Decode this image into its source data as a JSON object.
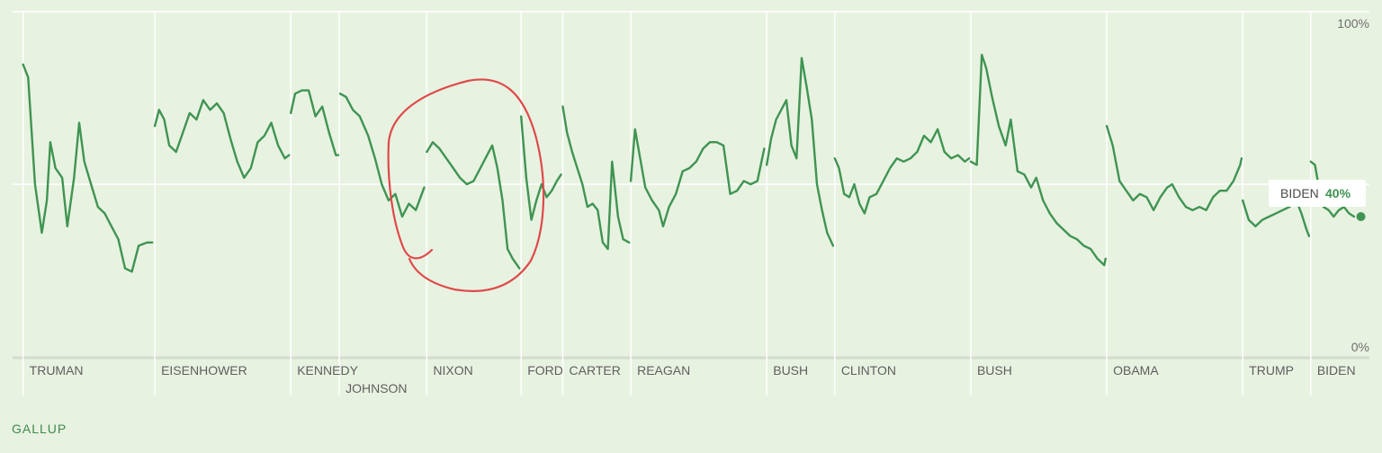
{
  "chart_data": {
    "type": "line",
    "source": "GALLUP",
    "ylim": [
      0,
      100
    ],
    "y_ticks": [
      "100%",
      "0%"
    ],
    "x_domain": [
      1945,
      2024.5
    ],
    "colors": {
      "line": "#3f9452",
      "grid": "#ffffff",
      "annotation": "#de4a4a",
      "background": "#e8f2e1"
    },
    "presidents": [
      {
        "name": "TRUMAN",
        "start": 1945.3,
        "row": 0
      },
      {
        "name": "EISENHOWER",
        "start": 1953.05,
        "row": 0
      },
      {
        "name": "KENNEDY",
        "start": 1961.05,
        "row": 0
      },
      {
        "name": "JOHNSON",
        "start": 1963.9,
        "row": 1
      },
      {
        "name": "NIXON",
        "start": 1969.05,
        "row": 0
      },
      {
        "name": "FORD",
        "start": 1974.6,
        "row": 0
      },
      {
        "name": "CARTER",
        "start": 1977.05,
        "row": 0
      },
      {
        "name": "REAGAN",
        "start": 1981.05,
        "row": 0
      },
      {
        "name": "BUSH",
        "start": 1989.05,
        "row": 0
      },
      {
        "name": "CLINTON",
        "start": 1993.05,
        "row": 0
      },
      {
        "name": "BUSH",
        "start": 2001.05,
        "row": 0
      },
      {
        "name": "OBAMA",
        "start": 2009.05,
        "row": 0
      },
      {
        "name": "TRUMP",
        "start": 2017.05,
        "row": 0
      },
      {
        "name": "BIDEN",
        "start": 2021.05,
        "row": 0
      }
    ],
    "series": [
      {
        "president": "TRUMAN",
        "points": [
          [
            1945.3,
            87
          ],
          [
            1945.6,
            83
          ],
          [
            1946.0,
            50
          ],
          [
            1946.4,
            35
          ],
          [
            1946.7,
            45
          ],
          [
            1946.9,
            63
          ],
          [
            1947.2,
            55
          ],
          [
            1947.6,
            52
          ],
          [
            1947.9,
            37
          ],
          [
            1948.3,
            52
          ],
          [
            1948.6,
            69
          ],
          [
            1948.9,
            57
          ],
          [
            1949.3,
            50
          ],
          [
            1949.7,
            43
          ],
          [
            1950.1,
            41
          ],
          [
            1950.5,
            37
          ],
          [
            1950.9,
            33
          ],
          [
            1951.3,
            24
          ],
          [
            1951.7,
            23
          ],
          [
            1952.1,
            31
          ],
          [
            1952.6,
            32
          ],
          [
            1952.9,
            32
          ]
        ]
      },
      {
        "president": "EISENHOWER",
        "points": [
          [
            1953.05,
            68
          ],
          [
            1953.3,
            73
          ],
          [
            1953.6,
            70
          ],
          [
            1953.9,
            62
          ],
          [
            1954.3,
            60
          ],
          [
            1954.7,
            66
          ],
          [
            1955.1,
            72
          ],
          [
            1955.5,
            70
          ],
          [
            1955.9,
            76
          ],
          [
            1956.3,
            73
          ],
          [
            1956.7,
            75
          ],
          [
            1957.1,
            72
          ],
          [
            1957.5,
            64
          ],
          [
            1957.9,
            57
          ],
          [
            1958.3,
            52
          ],
          [
            1958.7,
            55
          ],
          [
            1959.1,
            63
          ],
          [
            1959.5,
            65
          ],
          [
            1959.9,
            69
          ],
          [
            1960.3,
            62
          ],
          [
            1960.7,
            58
          ],
          [
            1960.95,
            59
          ]
        ]
      },
      {
        "president": "KENNEDY",
        "points": [
          [
            1961.05,
            72
          ],
          [
            1961.3,
            78
          ],
          [
            1961.7,
            79
          ],
          [
            1962.1,
            79
          ],
          [
            1962.5,
            71
          ],
          [
            1962.9,
            74
          ],
          [
            1963.3,
            66
          ],
          [
            1963.7,
            59
          ],
          [
            1963.85,
            59
          ]
        ]
      },
      {
        "president": "JOHNSON",
        "points": [
          [
            1963.95,
            78
          ],
          [
            1964.3,
            77
          ],
          [
            1964.7,
            73
          ],
          [
            1965.1,
            71
          ],
          [
            1965.6,
            65
          ],
          [
            1966.0,
            58
          ],
          [
            1966.4,
            50
          ],
          [
            1966.8,
            45
          ],
          [
            1967.2,
            47
          ],
          [
            1967.6,
            40
          ],
          [
            1968.0,
            44
          ],
          [
            1968.4,
            42
          ],
          [
            1968.9,
            49
          ]
        ]
      },
      {
        "president": "NIXON",
        "points": [
          [
            1969.05,
            60
          ],
          [
            1969.4,
            63
          ],
          [
            1969.8,
            61
          ],
          [
            1970.2,
            58
          ],
          [
            1970.6,
            55
          ],
          [
            1971.0,
            52
          ],
          [
            1971.4,
            50
          ],
          [
            1971.8,
            51
          ],
          [
            1972.2,
            55
          ],
          [
            1972.6,
            59
          ],
          [
            1972.9,
            62
          ],
          [
            1973.2,
            55
          ],
          [
            1973.5,
            45
          ],
          [
            1973.8,
            30
          ],
          [
            1974.1,
            27
          ],
          [
            1974.5,
            24
          ]
        ]
      },
      {
        "president": "FORD",
        "points": [
          [
            1974.6,
            71
          ],
          [
            1974.9,
            52
          ],
          [
            1975.2,
            39
          ],
          [
            1975.5,
            45
          ],
          [
            1975.8,
            50
          ],
          [
            1976.1,
            46
          ],
          [
            1976.4,
            48
          ],
          [
            1976.7,
            51
          ],
          [
            1976.95,
            53
          ]
        ]
      },
      {
        "president": "CARTER",
        "points": [
          [
            1977.05,
            74
          ],
          [
            1977.3,
            66
          ],
          [
            1977.6,
            60
          ],
          [
            1977.9,
            55
          ],
          [
            1978.2,
            50
          ],
          [
            1978.5,
            43
          ],
          [
            1978.8,
            44
          ],
          [
            1979.1,
            42
          ],
          [
            1979.4,
            32
          ],
          [
            1979.7,
            30
          ],
          [
            1979.95,
            57
          ],
          [
            1980.3,
            40
          ],
          [
            1980.6,
            33
          ],
          [
            1980.95,
            32
          ]
        ]
      },
      {
        "president": "REAGAN",
        "points": [
          [
            1981.05,
            51
          ],
          [
            1981.3,
            67
          ],
          [
            1981.6,
            58
          ],
          [
            1981.9,
            49
          ],
          [
            1982.3,
            45
          ],
          [
            1982.7,
            42
          ],
          [
            1982.95,
            37
          ],
          [
            1983.3,
            43
          ],
          [
            1983.7,
            47
          ],
          [
            1984.1,
            54
          ],
          [
            1984.5,
            55
          ],
          [
            1984.9,
            57
          ],
          [
            1985.3,
            61
          ],
          [
            1985.7,
            63
          ],
          [
            1986.1,
            63
          ],
          [
            1986.5,
            62
          ],
          [
            1986.9,
            47
          ],
          [
            1987.3,
            48
          ],
          [
            1987.7,
            51
          ],
          [
            1988.1,
            50
          ],
          [
            1988.5,
            51
          ],
          [
            1988.9,
            61
          ]
        ]
      },
      {
        "president": "BUSH",
        "points": [
          [
            1989.05,
            56
          ],
          [
            1989.3,
            64
          ],
          [
            1989.6,
            70
          ],
          [
            1989.9,
            73
          ],
          [
            1990.2,
            76
          ],
          [
            1990.5,
            62
          ],
          [
            1990.8,
            58
          ],
          [
            1991.1,
            89
          ],
          [
            1991.4,
            80
          ],
          [
            1991.7,
            70
          ],
          [
            1992.0,
            50
          ],
          [
            1992.3,
            42
          ],
          [
            1992.6,
            35
          ],
          [
            1992.95,
            31
          ]
        ]
      },
      {
        "president": "CLINTON",
        "points": [
          [
            1993.05,
            58
          ],
          [
            1993.3,
            55
          ],
          [
            1993.6,
            47
          ],
          [
            1993.9,
            46
          ],
          [
            1994.2,
            50
          ],
          [
            1994.5,
            44
          ],
          [
            1994.8,
            41
          ],
          [
            1995.1,
            46
          ],
          [
            1995.5,
            47
          ],
          [
            1995.9,
            51
          ],
          [
            1996.3,
            55
          ],
          [
            1996.7,
            58
          ],
          [
            1997.1,
            57
          ],
          [
            1997.5,
            58
          ],
          [
            1997.9,
            60
          ],
          [
            1998.3,
            65
          ],
          [
            1998.7,
            63
          ],
          [
            1999.1,
            67
          ],
          [
            1999.5,
            60
          ],
          [
            1999.9,
            58
          ],
          [
            2000.3,
            59
          ],
          [
            2000.7,
            57
          ],
          [
            2000.95,
            58
          ]
        ]
      },
      {
        "president": "BUSH",
        "points": [
          [
            2001.05,
            57
          ],
          [
            2001.4,
            56
          ],
          [
            2001.7,
            90
          ],
          [
            2001.95,
            86
          ],
          [
            2002.3,
            77
          ],
          [
            2002.7,
            68
          ],
          [
            2003.1,
            62
          ],
          [
            2003.4,
            70
          ],
          [
            2003.8,
            54
          ],
          [
            2004.2,
            53
          ],
          [
            2004.6,
            49
          ],
          [
            2004.9,
            52
          ],
          [
            2005.3,
            45
          ],
          [
            2005.7,
            41
          ],
          [
            2006.1,
            38
          ],
          [
            2006.5,
            36
          ],
          [
            2006.9,
            34
          ],
          [
            2007.3,
            33
          ],
          [
            2007.7,
            31
          ],
          [
            2008.1,
            30
          ],
          [
            2008.5,
            27
          ],
          [
            2008.9,
            25
          ],
          [
            2008.98,
            27
          ]
        ]
      },
      {
        "president": "OBAMA",
        "points": [
          [
            2009.05,
            68
          ],
          [
            2009.4,
            62
          ],
          [
            2009.8,
            51
          ],
          [
            2010.2,
            48
          ],
          [
            2010.6,
            45
          ],
          [
            2011.0,
            47
          ],
          [
            2011.4,
            46
          ],
          [
            2011.8,
            42
          ],
          [
            2012.2,
            46
          ],
          [
            2012.6,
            49
          ],
          [
            2012.9,
            50
          ],
          [
            2013.3,
            46
          ],
          [
            2013.7,
            43
          ],
          [
            2014.1,
            42
          ],
          [
            2014.5,
            43
          ],
          [
            2014.9,
            42
          ],
          [
            2015.3,
            46
          ],
          [
            2015.7,
            48
          ],
          [
            2016.1,
            48
          ],
          [
            2016.5,
            51
          ],
          [
            2016.9,
            56
          ],
          [
            2016.98,
            58
          ]
        ]
      },
      {
        "president": "TRUMP",
        "points": [
          [
            2017.05,
            45
          ],
          [
            2017.4,
            39
          ],
          [
            2017.8,
            37
          ],
          [
            2018.2,
            39
          ],
          [
            2018.6,
            40
          ],
          [
            2019.0,
            41
          ],
          [
            2019.4,
            42
          ],
          [
            2019.8,
            43
          ],
          [
            2020.2,
            45
          ],
          [
            2020.5,
            41
          ],
          [
            2020.8,
            36
          ],
          [
            2020.95,
            34
          ]
        ]
      },
      {
        "president": "BIDEN",
        "points": [
          [
            2021.05,
            57
          ],
          [
            2021.3,
            56
          ],
          [
            2021.5,
            50
          ],
          [
            2021.8,
            43
          ],
          [
            2022.1,
            42
          ],
          [
            2022.4,
            40
          ],
          [
            2022.7,
            42
          ],
          [
            2023.0,
            43
          ],
          [
            2023.3,
            41
          ],
          [
            2023.6,
            40
          ]
        ]
      }
    ],
    "current_point": {
      "name": "BIDEN",
      "x": 2024.0,
      "y": 40,
      "label": "40%"
    }
  }
}
